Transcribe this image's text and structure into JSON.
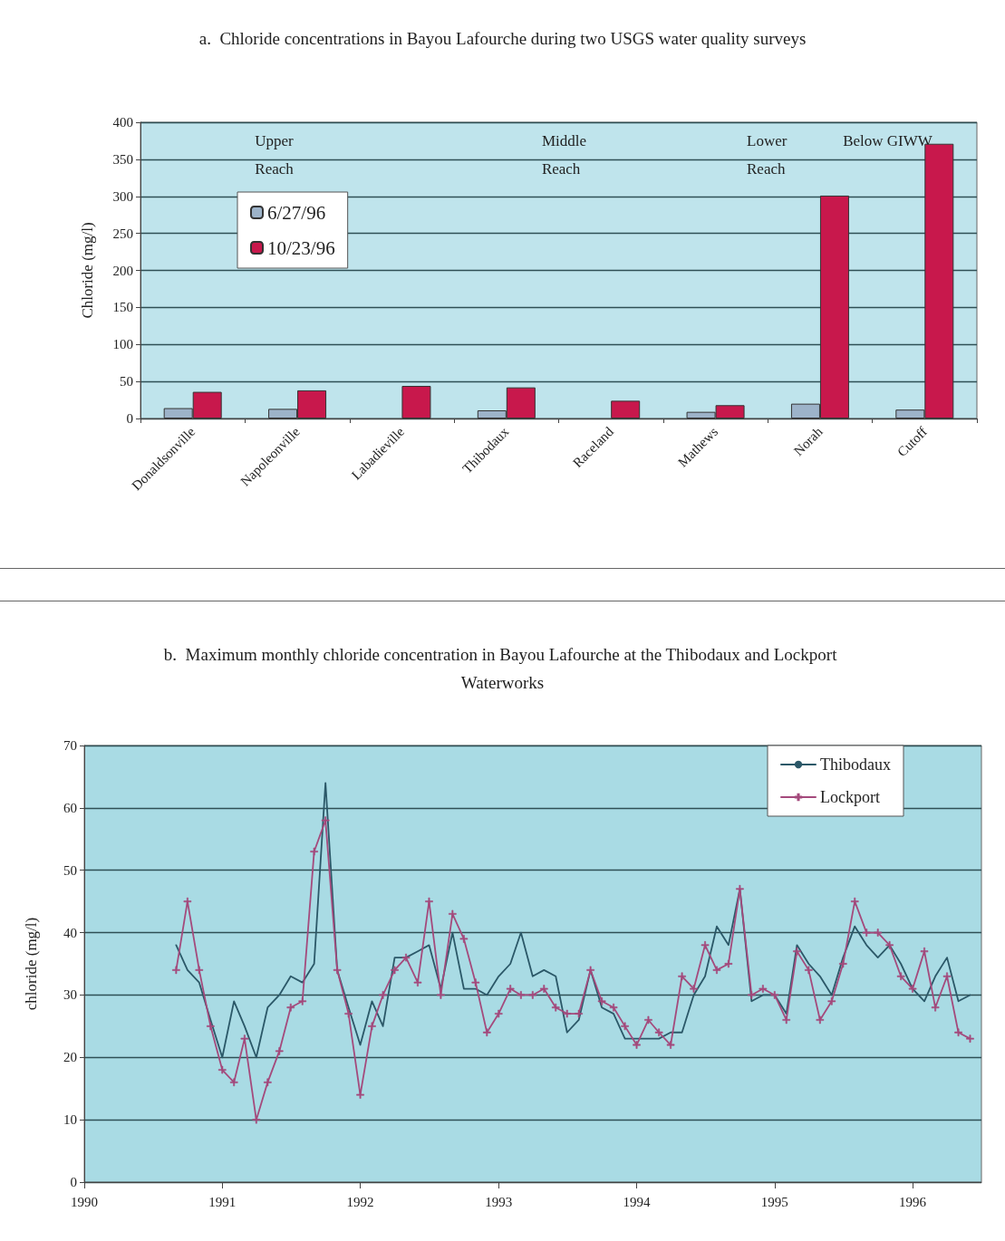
{
  "chart_data": [
    {
      "type": "bar",
      "title": "a.  Chloride concentrations in Bayou Lafourche during two USGS water quality surveys",
      "ylabel": "Chloride (mg/l)",
      "categories": [
        "Donaldsonville",
        "Napoleonville",
        "Labadieville",
        "Thibodaux",
        "Raceland",
        "Mathews",
        "Norah",
        "Cutoff"
      ],
      "series": [
        {
          "name": "6/27/96",
          "color": "#9db3c9",
          "values": [
            14,
            13,
            null,
            11,
            null,
            9,
            20,
            12
          ]
        },
        {
          "name": "10/23/96",
          "color": "#c8184c",
          "values": [
            36,
            38,
            44,
            42,
            24,
            18,
            301,
            371
          ]
        }
      ],
      "ylim": [
        0,
        400
      ],
      "yticks": [
        0,
        50,
        100,
        150,
        200,
        250,
        300,
        350,
        400
      ],
      "grid": "y",
      "legend": "top left",
      "annotations": [
        "Upper Reach",
        "Middle Reach",
        "Lower Reach",
        "Below GIWW"
      ]
    },
    {
      "type": "line",
      "title": "b.  Maximum monthly chloride concentration in Bayou Lafourche at the Thibodaux and Lockport Waterworks",
      "ylabel": "chloride (mg/l)",
      "x": [
        "1990-09",
        "1990-10",
        "1990-11",
        "1990-12",
        "1991-01",
        "1991-02",
        "1991-03",
        "1991-04",
        "1991-05",
        "1991-06",
        "1991-07",
        "1991-08",
        "1991-09",
        "1991-10",
        "1991-11",
        "1991-12",
        "1992-01",
        "1992-02",
        "1992-03",
        "1992-04",
        "1992-05",
        "1992-06",
        "1992-07",
        "1992-08",
        "1992-09",
        "1992-10",
        "1992-11",
        "1992-12",
        "1993-01",
        "1993-02",
        "1993-03",
        "1993-04",
        "1993-05",
        "1993-06",
        "1993-07",
        "1993-08",
        "1993-09",
        "1993-10",
        "1993-11",
        "1993-12",
        "1994-01",
        "1994-02",
        "1994-03",
        "1994-04",
        "1994-05",
        "1994-06",
        "1994-07",
        "1994-08",
        "1994-09",
        "1994-10",
        "1994-11",
        "1994-12",
        "1995-01",
        "1995-02",
        "1995-03",
        "1995-04",
        "1995-05",
        "1995-06",
        "1995-07",
        "1995-08",
        "1995-09",
        "1995-10",
        "1995-11",
        "1995-12",
        "1996-01",
        "1996-02",
        "1996-03",
        "1996-04",
        "1996-05",
        "1996-06"
      ],
      "series": [
        {
          "name": "Thibodaux",
          "color": "#2b5868",
          "marker": "none",
          "values": [
            38,
            34,
            32,
            26,
            20,
            29,
            25,
            20,
            28,
            30,
            33,
            32,
            35,
            64,
            34,
            28,
            22,
            29,
            25,
            36,
            36,
            37,
            38,
            31,
            40,
            31,
            31,
            30,
            33,
            35,
            40,
            33,
            34,
            33,
            24,
            26,
            34,
            28,
            27,
            23,
            23,
            23,
            23,
            24,
            24,
            30,
            33,
            41,
            38,
            47,
            29,
            30,
            30,
            27,
            38,
            35,
            33,
            30,
            36,
            41,
            38,
            36,
            38,
            35,
            31,
            29,
            33,
            36,
            29,
            30
          ]
        },
        {
          "name": "Lockport",
          "color": "#a44a7c",
          "marker": "cross",
          "values": [
            34,
            45,
            34,
            25,
            18,
            16,
            23,
            10,
            16,
            21,
            28,
            29,
            53,
            58,
            34,
            27,
            14,
            25,
            30,
            34,
            36,
            32,
            45,
            30,
            43,
            39,
            32,
            24,
            27,
            31,
            30,
            30,
            31,
            28,
            27,
            27,
            34,
            29,
            28,
            25,
            22,
            26,
            24,
            22,
            33,
            31,
            38,
            34,
            35,
            47,
            30,
            31,
            30,
            26,
            37,
            34,
            26,
            29,
            35,
            45,
            40,
            40,
            38,
            33,
            31,
            37,
            28,
            33,
            24,
            23
          ]
        }
      ],
      "xlim": [
        "1990-01",
        "1996-07"
      ],
      "xticks": [
        "1990",
        "1991",
        "1992",
        "1993",
        "1994",
        "1995",
        "1996"
      ],
      "ylim": [
        0,
        70
      ],
      "yticks": [
        0,
        10,
        20,
        30,
        40,
        50,
        60,
        70
      ],
      "grid": "y",
      "legend": "top right",
      "line_style": "solid"
    }
  ]
}
